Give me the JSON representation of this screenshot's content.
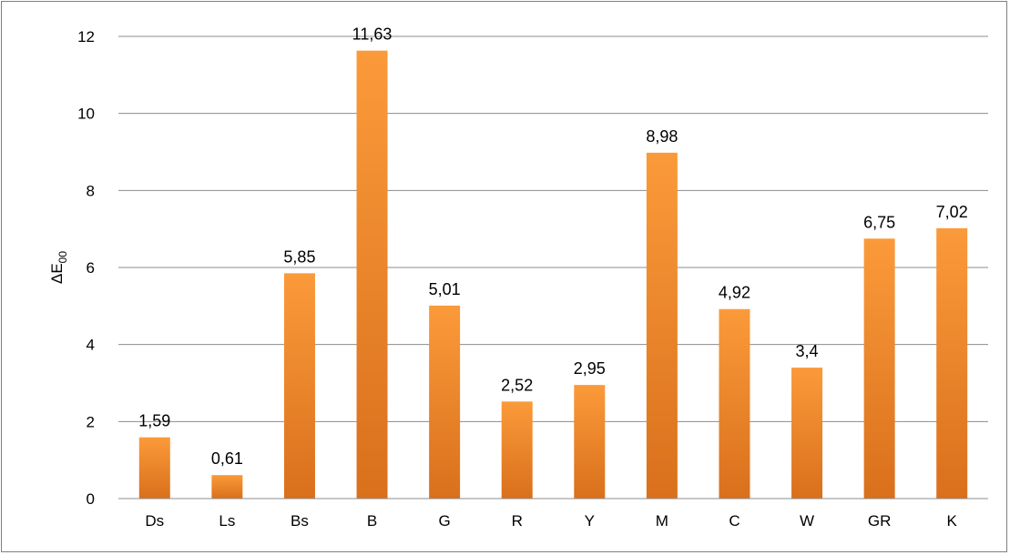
{
  "chart_data": {
    "type": "bar",
    "ylabel": "ΔE",
    "ylabel_subscript": "00",
    "ylim": [
      0,
      12
    ],
    "yticks": [
      "0",
      "2",
      "4",
      "6",
      "8",
      "10",
      "12"
    ],
    "grid": true,
    "legend": "none",
    "bar_color": "#f28a2e",
    "categories": [
      "Ds",
      "Ls",
      "Bs",
      "B",
      "G",
      "R",
      "Y",
      "M",
      "C",
      "W",
      "GR",
      "K"
    ],
    "values": [
      1.59,
      0.61,
      5.85,
      11.63,
      5.01,
      2.52,
      2.95,
      8.98,
      4.92,
      3.4,
      6.75,
      7.02
    ],
    "value_labels": [
      "1,59",
      "0,61",
      "5,85",
      "11,63",
      "5,01",
      "2,52",
      "2,95",
      "8,98",
      "4,92",
      "3,4",
      "6,75",
      "7,02"
    ]
  }
}
